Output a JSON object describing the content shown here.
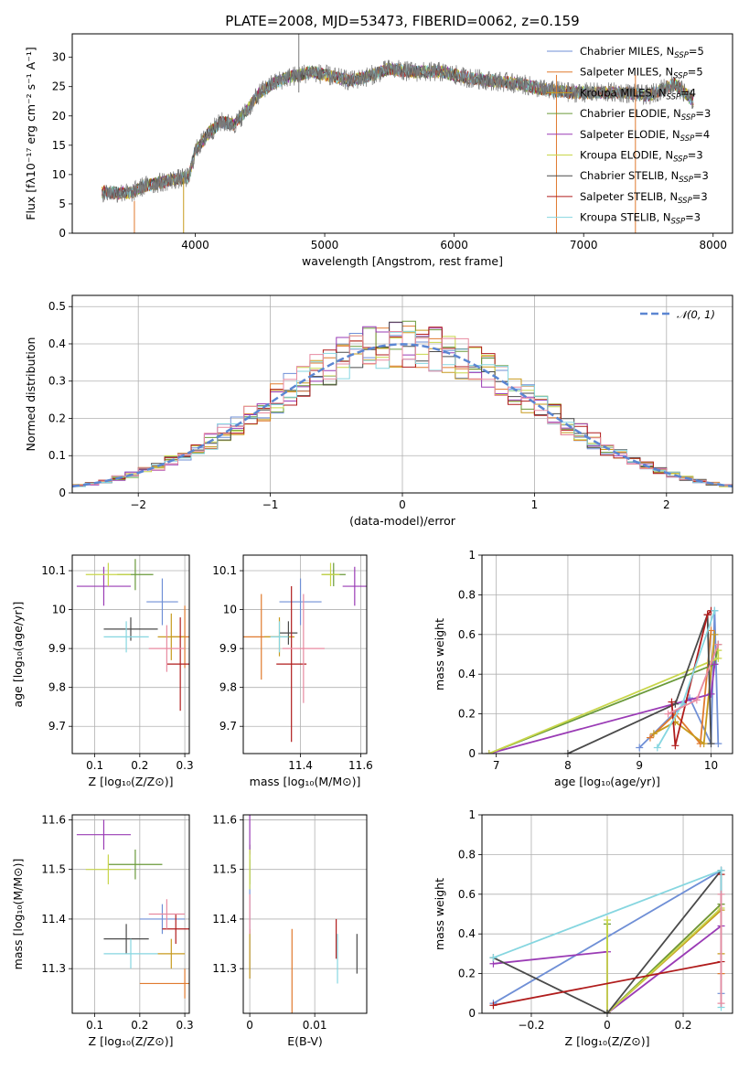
{
  "colors": {
    "c1": "#6f8fd6",
    "c2": "#e07a2e",
    "c3": "#c79a1e",
    "c4": "#6a9a3a",
    "c5": "#9a3bb5",
    "c6": "#c8d64a",
    "c7": "#4a4a4a",
    "c8": "#b01c1c",
    "c9": "#86d6e0",
    "c10": "#e88aa0"
  },
  "chart_data": [
    {
      "id": "spectrum",
      "type": "line",
      "title": "PLATE=2008, MJD=53473, FIBERID=0062, z=0.159",
      "xlabel": "wavelength [Angstrom, rest frame]",
      "ylabel": "Flux [fλ10⁻¹⁷ erg cm⁻² s⁻¹ A⁻¹]",
      "xlim": [
        3050,
        8150
      ],
      "ylim": [
        0,
        34
      ],
      "xticks": [
        4000,
        5000,
        6000,
        7000,
        8000
      ],
      "yticks": [
        0,
        5,
        10,
        15,
        20,
        25,
        30
      ],
      "grid": false,
      "legend_position": "top-right",
      "continuum": [
        [
          3280,
          7
        ],
        [
          3500,
          6.8
        ],
        [
          3600,
          8
        ],
        [
          3800,
          9
        ],
        [
          3950,
          9.5
        ],
        [
          4000,
          14
        ],
        [
          4100,
          17
        ],
        [
          4200,
          19
        ],
        [
          4300,
          18.5
        ],
        [
          4400,
          21
        ],
        [
          4500,
          24
        ],
        [
          4600,
          25.5
        ],
        [
          4700,
          26.5
        ],
        [
          4800,
          27
        ],
        [
          4900,
          27.5
        ],
        [
          5000,
          27
        ],
        [
          5100,
          26.5
        ],
        [
          5200,
          26
        ],
        [
          5300,
          26.5
        ],
        [
          5500,
          28
        ],
        [
          5700,
          27.5
        ],
        [
          5900,
          27.5
        ],
        [
          6100,
          26.5
        ],
        [
          6300,
          26
        ],
        [
          6500,
          25.5
        ],
        [
          6700,
          24.5
        ],
        [
          6900,
          24
        ],
        [
          7100,
          24
        ],
        [
          7300,
          24
        ],
        [
          7500,
          23.5
        ],
        [
          7700,
          25.5
        ],
        [
          7850,
          22.5
        ]
      ],
      "series": [
        {
          "name": "Chabrier MILES, N",
          "sub": "SSP",
          "tail": "=5",
          "color": "c1"
        },
        {
          "name": "Salpeter MILES, N",
          "sub": "SSP",
          "tail": "=5",
          "color": "c2"
        },
        {
          "name": "Kroupa MILES, N",
          "sub": "SSP",
          "tail": "=4",
          "color": "c3"
        },
        {
          "name": "Chabrier ELODIE, N",
          "sub": "SSP",
          "tail": "=3",
          "color": "c4"
        },
        {
          "name": "Salpeter ELODIE, N",
          "sub": "SSP",
          "tail": "=4",
          "color": "c5"
        },
        {
          "name": "Kroupa ELODIE, N",
          "sub": "SSP",
          "tail": "=3",
          "color": "c6"
        },
        {
          "name": "Chabrier STELIB, N",
          "sub": "SSP",
          "tail": "=3",
          "color": "c7"
        },
        {
          "name": "Salpeter STELIB, N",
          "sub": "SSP",
          "tail": "=3",
          "color": "c8"
        },
        {
          "name": "Kroupa STELIB, N",
          "sub": "SSP",
          "tail": "=3",
          "color": "c9"
        }
      ]
    },
    {
      "id": "residuals",
      "type": "bar",
      "xlabel": "(data-model)/error",
      "ylabel": "Normed distribution",
      "xlim": [
        -2.5,
        2.5
      ],
      "ylim": [
        0,
        0.53
      ],
      "xticks": [
        -2,
        -1,
        0,
        1,
        2
      ],
      "yticks": [
        0.0,
        0.1,
        0.2,
        0.3,
        0.4,
        0.5
      ],
      "grid": true,
      "legend": "𝒩(0, 1)",
      "legend_position": "top-right",
      "bin_width": 0.1,
      "series_colors": [
        "c1",
        "c2",
        "c3",
        "c4",
        "c5",
        "c6",
        "c7",
        "c8",
        "c9",
        "c10"
      ]
    },
    {
      "id": "age_vs_Z",
      "type": "scatter",
      "xlabel": "Z [log₁₀(Z/Z⊙)]",
      "ylabel": "age  [log₁₀(age/yr)]",
      "xlim": [
        0.05,
        0.31
      ],
      "ylim": [
        9.63,
        10.14
      ],
      "xticks": [
        0.1,
        0.2,
        0.3
      ],
      "yticks": [
        9.7,
        9.8,
        9.9,
        10.0,
        10.1
      ],
      "grid": true,
      "points": [
        {
          "x": 0.25,
          "y": 10.02,
          "dx": 0.035,
          "dy": 0.06,
          "color": "c1"
        },
        {
          "x": 0.3,
          "y": 9.93,
          "dx": 0.03,
          "dy": 0.08,
          "color": "c2"
        },
        {
          "x": 0.27,
          "y": 9.93,
          "dx": 0.03,
          "dy": 0.06,
          "color": "c3"
        },
        {
          "x": 0.19,
          "y": 10.09,
          "dx": 0.04,
          "dy": 0.04,
          "color": "c4"
        },
        {
          "x": 0.12,
          "y": 10.06,
          "dx": 0.06,
          "dy": 0.05,
          "color": "c5"
        },
        {
          "x": 0.13,
          "y": 10.09,
          "dx": 0.05,
          "dy": 0.03,
          "color": "c6"
        },
        {
          "x": 0.18,
          "y": 9.95,
          "dx": 0.06,
          "dy": 0.03,
          "color": "c7"
        },
        {
          "x": 0.29,
          "y": 9.86,
          "dx": 0.03,
          "dy": 0.12,
          "color": "c8"
        },
        {
          "x": 0.17,
          "y": 9.93,
          "dx": 0.05,
          "dy": 0.04,
          "color": "c9"
        },
        {
          "x": 0.26,
          "y": 9.9,
          "dx": 0.04,
          "dy": 0.06,
          "color": "c10"
        }
      ]
    },
    {
      "id": "age_vs_mass",
      "type": "scatter",
      "xlabel": "mass [log₁₀(M/M⊙)]",
      "ylabel": "",
      "xlim": [
        11.21,
        11.62
      ],
      "ylim": [
        9.63,
        10.14
      ],
      "xticks": [
        11.4,
        11.6
      ],
      "yticks": [
        9.7,
        9.8,
        9.9,
        10.0,
        10.1
      ],
      "grid": true,
      "points": [
        {
          "x": 11.4,
          "y": 10.02,
          "dx": 0.07,
          "dy": 0.06,
          "color": "c1"
        },
        {
          "x": 11.27,
          "y": 9.93,
          "dx": 0.06,
          "dy": 0.11,
          "color": "c2"
        },
        {
          "x": 11.33,
          "y": 9.93,
          "dx": 0.05,
          "dy": 0.05,
          "color": "c3"
        },
        {
          "x": 11.51,
          "y": 10.09,
          "dx": 0.04,
          "dy": 0.03,
          "color": "c4"
        },
        {
          "x": 11.58,
          "y": 10.06,
          "dx": 0.04,
          "dy": 0.05,
          "color": "c5"
        },
        {
          "x": 11.5,
          "y": 10.09,
          "dx": 0.03,
          "dy": 0.03,
          "color": "c6"
        },
        {
          "x": 11.36,
          "y": 9.94,
          "dx": 0.03,
          "dy": 0.03,
          "color": "c7"
        },
        {
          "x": 11.37,
          "y": 9.86,
          "dx": 0.05,
          "dy": 0.2,
          "color": "c8"
        },
        {
          "x": 11.33,
          "y": 9.93,
          "dx": 0.03,
          "dy": 0.04,
          "color": "c9"
        },
        {
          "x": 11.41,
          "y": 9.9,
          "dx": 0.07,
          "dy": 0.14,
          "color": "c10"
        }
      ]
    },
    {
      "id": "weight_vs_age",
      "type": "line",
      "xlabel": "age  [log₁₀(age/yr)]",
      "ylabel": "mass weight",
      "xlim": [
        6.8,
        10.3
      ],
      "ylim": [
        0,
        1
      ],
      "xticks": [
        7,
        8,
        9,
        10
      ],
      "yticks": [
        0.0,
        0.2,
        0.4,
        0.6,
        0.8,
        1.0
      ],
      "grid": true,
      "series": [
        {
          "color": "c1",
          "x": [
            9.0,
            9.7,
            10.0,
            10.05,
            10.1
          ],
          "y": [
            0.03,
            0.28,
            0.05,
            0.72,
            0.05
          ]
        },
        {
          "color": "c2",
          "x": [
            9.15,
            9.5,
            9.85,
            10.0
          ],
          "y": [
            0.08,
            0.2,
            0.05,
            0.62
          ]
        },
        {
          "color": "c3",
          "x": [
            9.2,
            9.5,
            9.9,
            10.05
          ],
          "y": [
            0.1,
            0.16,
            0.05,
            0.6
          ]
        },
        {
          "color": "c4",
          "x": [
            6.9,
            10.05,
            10.1
          ],
          "y": [
            0.0,
            0.45,
            0.55
          ]
        },
        {
          "color": "c5",
          "x": [
            6.9,
            10.0,
            10.05
          ],
          "y": [
            0.0,
            0.3,
            0.45
          ]
        },
        {
          "color": "c6",
          "x": [
            6.9,
            10.1,
            10.1
          ],
          "y": [
            0.0,
            0.48,
            0.52
          ]
        },
        {
          "color": "c7",
          "x": [
            8.0,
            9.5,
            9.95,
            10.0
          ],
          "y": [
            0.0,
            0.25,
            0.7,
            0.05
          ]
        },
        {
          "color": "c8",
          "x": [
            9.45,
            9.5,
            9.95,
            10.0
          ],
          "y": [
            0.26,
            0.04,
            0.7,
            0.72
          ]
        },
        {
          "color": "c9",
          "x": [
            9.25,
            9.6,
            10.05
          ],
          "y": [
            0.03,
            0.25,
            0.72
          ]
        },
        {
          "color": "c10",
          "x": [
            9.4,
            9.8,
            10.1
          ],
          "y": [
            0.2,
            0.27,
            0.55
          ]
        }
      ]
    },
    {
      "id": "mass_vs_Z",
      "type": "scatter",
      "xlabel": "Z [log₁₀(Z/Z⊙)]",
      "ylabel": "mass [log₁₀(M/M⊙)]",
      "xlim": [
        0.05,
        0.31
      ],
      "ylim": [
        11.21,
        11.61
      ],
      "xticks": [
        0.1,
        0.2,
        0.3
      ],
      "yticks": [
        11.3,
        11.4,
        11.5,
        11.6
      ],
      "grid": true,
      "points": [
        {
          "x": 0.25,
          "y": 11.4,
          "dx": 0.05,
          "dy": 0.03,
          "color": "c1"
        },
        {
          "x": 0.3,
          "y": 11.27,
          "dx": 0.1,
          "dy": 0.03,
          "color": "c2"
        },
        {
          "x": 0.27,
          "y": 11.33,
          "dx": 0.03,
          "dy": 0.03,
          "color": "c3"
        },
        {
          "x": 0.19,
          "y": 11.51,
          "dx": 0.06,
          "dy": 0.03,
          "color": "c4"
        },
        {
          "x": 0.12,
          "y": 11.57,
          "dx": 0.06,
          "dy": 0.03,
          "color": "c5"
        },
        {
          "x": 0.13,
          "y": 11.5,
          "dx": 0.05,
          "dy": 0.03,
          "color": "c6"
        },
        {
          "x": 0.17,
          "y": 11.36,
          "dx": 0.05,
          "dy": 0.03,
          "color": "c7"
        },
        {
          "x": 0.28,
          "y": 11.38,
          "dx": 0.03,
          "dy": 0.03,
          "color": "c8"
        },
        {
          "x": 0.18,
          "y": 11.33,
          "dx": 0.06,
          "dy": 0.03,
          "color": "c9"
        },
        {
          "x": 0.26,
          "y": 11.41,
          "dx": 0.04,
          "dy": 0.03,
          "color": "c10"
        }
      ]
    },
    {
      "id": "mass_vs_ebv",
      "type": "scatter",
      "xlabel": "E(B-V)",
      "ylabel": "",
      "xlim": [
        -0.001,
        0.018
      ],
      "ylim": [
        11.21,
        11.61
      ],
      "xticks": [
        0.0,
        0.01
      ],
      "yticks": [
        11.3,
        11.4,
        11.5,
        11.6
      ],
      "grid": true,
      "points": [
        {
          "x": 0.0,
          "y": 11.4,
          "dx": 0,
          "dy": 0.12,
          "color": "c1"
        },
        {
          "x": 0.0065,
          "y": 11.27,
          "dx": 0,
          "dy": 0.11,
          "color": "c2"
        },
        {
          "x": 0.0,
          "y": 11.33,
          "dx": 0,
          "dy": 0.05,
          "color": "c3"
        },
        {
          "x": 0.0,
          "y": 11.51,
          "dx": 0,
          "dy": 0.04,
          "color": "c4"
        },
        {
          "x": 0.0,
          "y": 11.57,
          "dx": 0,
          "dy": 0.04,
          "color": "c5"
        },
        {
          "x": 0.0,
          "y": 11.5,
          "dx": 0,
          "dy": 0.04,
          "color": "c6"
        },
        {
          "x": 0.0165,
          "y": 11.33,
          "dx": 0,
          "dy": 0.04,
          "color": "c7"
        },
        {
          "x": 0.0133,
          "y": 11.36,
          "dx": 0,
          "dy": 0.04,
          "color": "c8"
        },
        {
          "x": 0.0135,
          "y": 11.32,
          "dx": 0,
          "dy": 0.05,
          "color": "c9"
        },
        {
          "x": 0.0,
          "y": 11.41,
          "dx": 0,
          "dy": 0.04,
          "color": "c10"
        }
      ]
    },
    {
      "id": "weight_vs_Z",
      "type": "line",
      "xlabel": "Z [log₁₀(Z/Z⊙)]",
      "ylabel": "mass weight",
      "xlim": [
        -0.33,
        0.33
      ],
      "ylim": [
        0,
        1
      ],
      "xticks": [
        -0.2,
        0.0,
        0.2
      ],
      "yticks": [
        0.0,
        0.2,
        0.4,
        0.6,
        0.8,
        1.0
      ],
      "grid": true,
      "series": [
        {
          "color": "c1",
          "x": [
            -0.3,
            0.3,
            0.3
          ],
          "y": [
            0.05,
            0.72,
            0.1
          ]
        },
        {
          "color": "c2",
          "x": [
            0.0,
            0.3,
            0.3
          ],
          "y": [
            0.0,
            0.55,
            0.2
          ]
        },
        {
          "color": "c3",
          "x": [
            0.0,
            0.3,
            0.3
          ],
          "y": [
            0.0,
            0.52,
            0.3
          ]
        },
        {
          "color": "c4",
          "x": [
            0.0,
            0.0,
            0.3
          ],
          "y": [
            0.45,
            0.0,
            0.55
          ]
        },
        {
          "color": "c5",
          "x": [
            -0.3,
            0.0,
            0.0,
            0.3
          ],
          "y": [
            0.25,
            0.31,
            0.0,
            0.44
          ]
        },
        {
          "color": "c6",
          "x": [
            0.0,
            0.0,
            0.3
          ],
          "y": [
            0.47,
            0.0,
            0.53
          ]
        },
        {
          "color": "c7",
          "x": [
            -0.3,
            0.0,
            0.3
          ],
          "y": [
            0.28,
            0.0,
            0.72
          ]
        },
        {
          "color": "c8",
          "x": [
            -0.3,
            0.3,
            0.3
          ],
          "y": [
            0.04,
            0.26,
            0.7
          ]
        },
        {
          "color": "c9",
          "x": [
            -0.3,
            0.3,
            0.3
          ],
          "y": [
            0.28,
            0.72,
            0.03
          ]
        },
        {
          "color": "c10",
          "x": [
            0.3,
            0.3
          ],
          "y": [
            0.05,
            0.6
          ]
        }
      ]
    }
  ]
}
